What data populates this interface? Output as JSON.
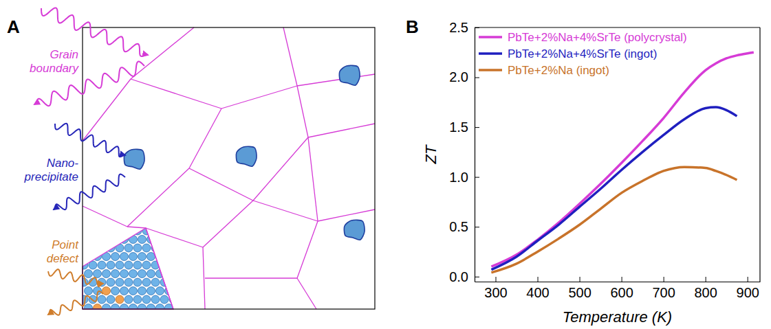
{
  "panel_labels": [
    "A",
    "B"
  ],
  "diagram": {
    "labels": [
      {
        "text": "Grain boundary",
        "color": "#d63bd6"
      },
      {
        "text": "Nano-precipitate",
        "color": "#2626b8"
      },
      {
        "text": "Point defect",
        "color": "#cf7d2c"
      }
    ]
  },
  "chart_data": {
    "type": "line",
    "x_label": "Temperature (K)",
    "y_label": "ZT",
    "x": [
      290,
      350,
      400,
      450,
      500,
      550,
      600,
      650,
      700,
      750,
      800,
      825,
      850,
      875,
      900,
      915
    ],
    "series": [
      {
        "name": "PbTe+2%Na+4%SrTe (polycrystal)",
        "color": "#d63bd6",
        "values": [
          0.1,
          0.22,
          0.37,
          0.54,
          0.73,
          0.93,
          1.14,
          1.36,
          1.59,
          1.85,
          2.07,
          2.14,
          2.19,
          2.22,
          2.24,
          2.25
        ]
      },
      {
        "name": "PbTe+2%Na+4%SrTe (ingot)",
        "color": "#1f1fbf",
        "values": [
          0.07,
          0.2,
          0.36,
          0.52,
          0.7,
          0.88,
          1.07,
          1.25,
          1.42,
          1.58,
          1.69,
          1.7,
          1.67,
          1.61,
          null,
          null
        ]
      },
      {
        "name": "PbTe+2%Na (ingot)",
        "color": "#c8732a",
        "values": [
          0.04,
          0.13,
          0.25,
          0.38,
          0.52,
          0.68,
          0.84,
          0.96,
          1.06,
          1.1,
          1.09,
          1.06,
          1.02,
          0.97,
          null,
          null
        ]
      }
    ],
    "xlim": [
      250,
      930
    ],
    "xticks": [
      300,
      400,
      500,
      600,
      700,
      800,
      900
    ],
    "ylim": [
      -0.05,
      2.5
    ],
    "yticks": [
      {
        "value": 0,
        "label": "0.0"
      },
      0.5,
      {
        "value": 1,
        "label": "1.0"
      },
      1.5,
      {
        "value": 2,
        "label": "2.0"
      },
      2.5
    ],
    "legend": "upper left",
    "grid": false
  }
}
